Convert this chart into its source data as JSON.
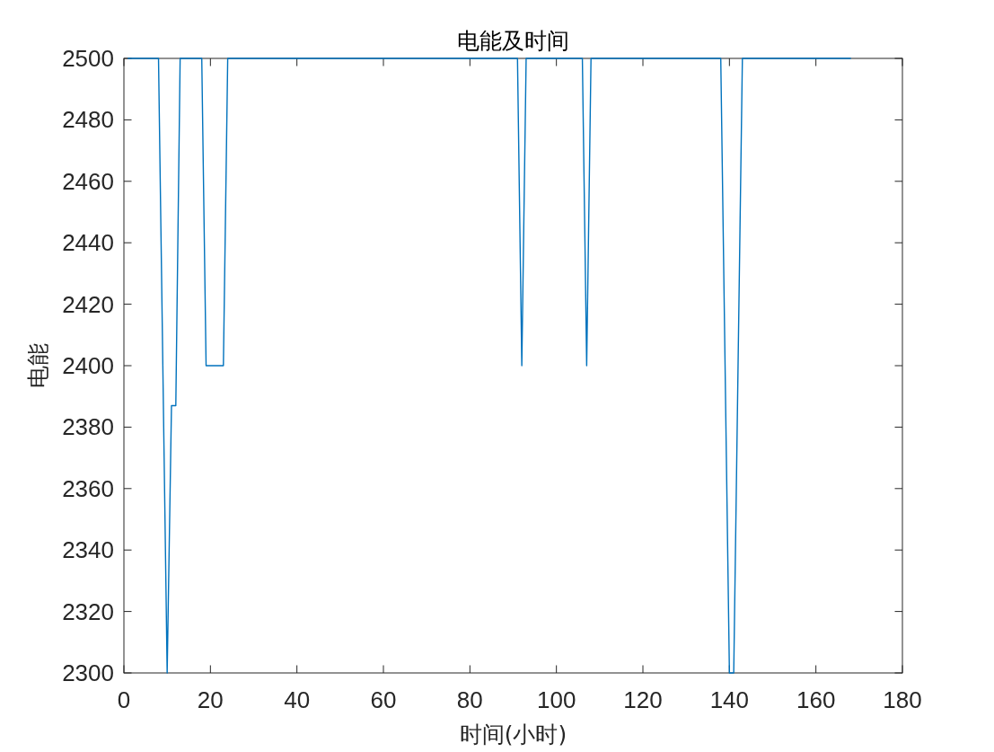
{
  "chart_data": {
    "type": "line",
    "title": "电能及时间",
    "xlabel": "时间(小时)",
    "ylabel": "电能",
    "x": [
      1,
      8,
      10,
      11,
      12,
      13,
      18,
      19,
      23,
      24,
      91,
      92,
      93,
      106,
      107,
      108,
      138,
      140,
      141,
      143,
      168
    ],
    "values": [
      2500,
      2500,
      2300,
      2387,
      2387,
      2500,
      2500,
      2400,
      2400,
      2500,
      2500,
      2400,
      2500,
      2500,
      2400,
      2500,
      2500,
      2300,
      2300,
      2500,
      2500
    ],
    "color": "#0072bd",
    "line_style": "solid",
    "xlim": [
      0,
      180
    ],
    "ylim": [
      2300,
      2500
    ],
    "xticks": [
      0,
      20,
      40,
      60,
      80,
      100,
      120,
      140,
      160,
      180
    ],
    "yticks": [
      2300,
      2320,
      2340,
      2360,
      2380,
      2400,
      2420,
      2440,
      2460,
      2480,
      2500
    ]
  }
}
